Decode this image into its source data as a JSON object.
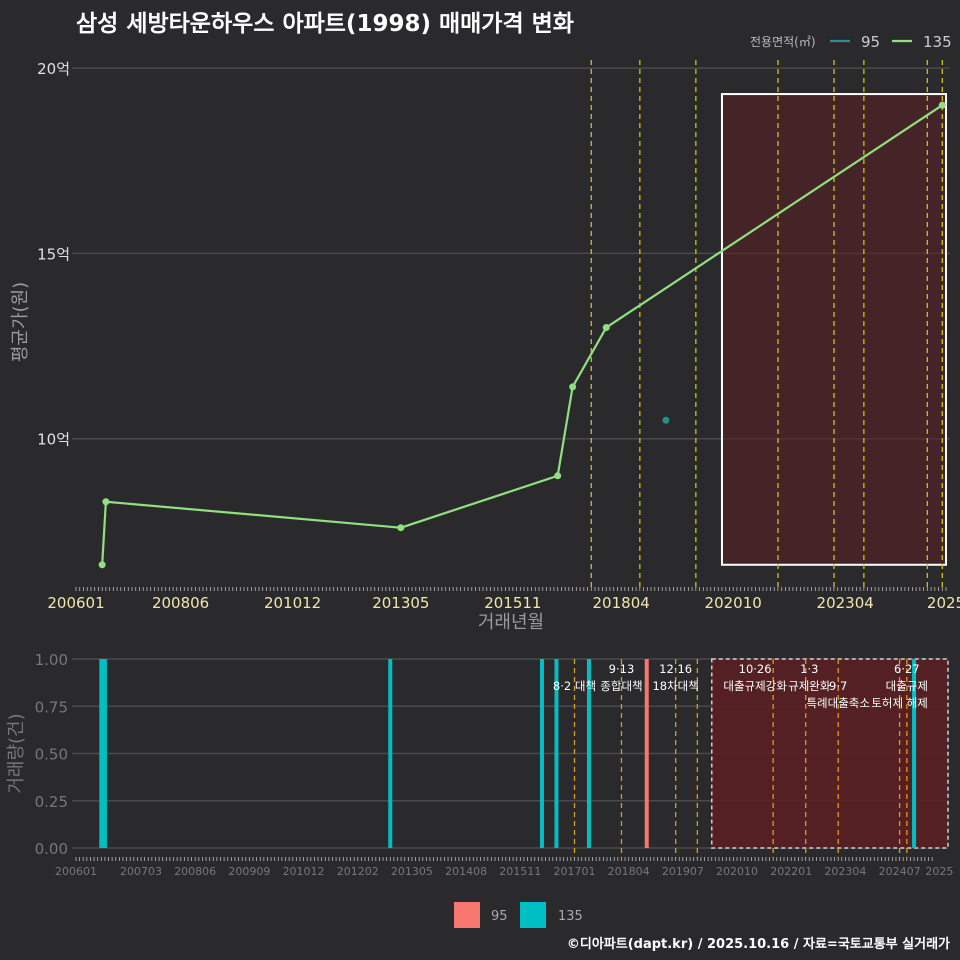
{
  "title": "삼성 세방타운하우스 아파트(1998) 매매가격 변화",
  "credit": "©디아파트(dapt.kr) / 2025.10.16 / 자료=국토교통부 실거래가",
  "colors": {
    "background": "#2a2a2c",
    "grid": "#4a4a4c",
    "line95": "#2a8c8c",
    "line135": "#90e080",
    "bar95": "#f8766d",
    "bar135": "#00bfc4",
    "policy_line": "#d4c010",
    "policy_line_bottom": "#e09a10",
    "highlight_fill": "#5a1f22",
    "highlight_border": "#ffffff"
  },
  "chart_data": [
    {
      "type": "line",
      "title": "삼성 세방타운하우스 아파트(1998) 매매가격 변화",
      "xlabel": "거래년월",
      "ylabel": "평균가(원)",
      "xlim": [
        2006.083,
        2025.5
      ],
      "ylim": [
        6.0,
        20.3
      ],
      "y_ticks": [
        {
          "v": 10,
          "label": "10억"
        },
        {
          "v": 15,
          "label": "15억"
        },
        {
          "v": 20,
          "label": "20억"
        }
      ],
      "x_ticks": [
        {
          "v": 2006.083,
          "label": "200601"
        },
        {
          "v": 2008.417,
          "label": "200806"
        },
        {
          "v": 2010.917,
          "label": "201012"
        },
        {
          "v": 2013.333,
          "label": "201305"
        },
        {
          "v": 2015.833,
          "label": "201511"
        },
        {
          "v": 2018.25,
          "label": "201804"
        },
        {
          "v": 2020.75,
          "label": "202010"
        },
        {
          "v": 2023.25,
          "label": "202304"
        },
        {
          "v": 2025.5,
          "label": "2025"
        }
      ],
      "legend_title": "전용면적(㎡)",
      "legend": [
        "95",
        "135"
      ],
      "series": [
        {
          "name": "95",
          "points": [
            {
              "x": 2019.25,
              "y": 10.5
            }
          ]
        },
        {
          "name": "135",
          "points": [
            {
              "x": 2006.667,
              "y": 6.6
            },
            {
              "x": 2006.75,
              "y": 8.3
            },
            {
              "x": 2013.333,
              "y": 7.6
            },
            {
              "x": 2016.833,
              "y": 9.0
            },
            {
              "x": 2017.167,
              "y": 11.4
            },
            {
              "x": 2017.917,
              "y": 13.0
            },
            {
              "x": 2025.417,
              "y": 19.0
            }
          ]
        }
      ],
      "policy_lines": [
        2017.583,
        2018.667,
        2019.917,
        2021.75,
        2023.0,
        2023.667,
        2025.083,
        2025.417
      ],
      "highlight_range": {
        "x": [
          2020.5,
          2025.5
        ],
        "y": [
          6.6,
          19.3
        ]
      }
    },
    {
      "type": "bar",
      "ylabel": "거래량(건)",
      "ylim": [
        0,
        1.0
      ],
      "y_ticks": [
        {
          "v": 0,
          "label": "0.00"
        },
        {
          "v": 0.25,
          "label": "0.25"
        },
        {
          "v": 0.5,
          "label": "0.50"
        },
        {
          "v": 0.75,
          "label": "0.75"
        },
        {
          "v": 1.0,
          "label": "1.00"
        }
      ],
      "x_ticks": [
        {
          "v": 2006.083,
          "label": "200601"
        },
        {
          "v": 2007.583,
          "label": "200703"
        },
        {
          "v": 2008.833,
          "label": "200806"
        },
        {
          "v": 2010.083,
          "label": "200909"
        },
        {
          "v": 2011.333,
          "label": "201012"
        },
        {
          "v": 2012.583,
          "label": "201202"
        },
        {
          "v": 2013.833,
          "label": "201305"
        },
        {
          "v": 2015.083,
          "label": "201408"
        },
        {
          "v": 2016.333,
          "label": "201511"
        },
        {
          "v": 2017.583,
          "label": "201701"
        },
        {
          "v": 2018.833,
          "label": "201804"
        },
        {
          "v": 2020.083,
          "label": "201907"
        },
        {
          "v": 2021.333,
          "label": "202010"
        },
        {
          "v": 2022.583,
          "label": "202201"
        },
        {
          "v": 2023.833,
          "label": "202304"
        },
        {
          "v": 2025.083,
          "label": "202407"
        },
        {
          "v": 2026.0,
          "label": "2025"
        }
      ],
      "legend": [
        "95",
        "135"
      ],
      "bars": [
        {
          "x": 2006.667,
          "series": "135",
          "value": 1
        },
        {
          "x": 2006.75,
          "series": "135",
          "value": 1
        },
        {
          "x": 2013.333,
          "series": "135",
          "value": 1
        },
        {
          "x": 2016.833,
          "series": "135",
          "value": 1
        },
        {
          "x": 2017.167,
          "series": "135",
          "value": 1
        },
        {
          "x": 2017.917,
          "series": "135",
          "value": 1
        },
        {
          "x": 2019.25,
          "series": "95",
          "value": 1
        },
        {
          "x": 2025.417,
          "series": "135",
          "value": 1
        }
      ],
      "policy_lines": [
        2017.583,
        2018.667,
        2019.917,
        2020.417,
        2022.167,
        2022.917,
        2023.667,
        2025.083,
        2025.25
      ],
      "highlight_range": {
        "x": [
          2020.75,
          2026.2
        ]
      },
      "annotations": [
        {
          "x": 2017.583,
          "row": 1,
          "text": "8·2 대책"
        },
        {
          "x": 2018.667,
          "row": 0,
          "text": "9·13"
        },
        {
          "x": 2018.667,
          "row": 1,
          "text": "종합대책"
        },
        {
          "x": 2019.917,
          "row": 0,
          "text": "12·16"
        },
        {
          "x": 2019.917,
          "row": 1,
          "text": "18차대책"
        },
        {
          "x": 2021.75,
          "row": 0,
          "text": "10·26"
        },
        {
          "x": 2021.75,
          "row": 1,
          "text": "대출규제강화"
        },
        {
          "x": 2023.0,
          "row": 0,
          "text": "1·3"
        },
        {
          "x": 2023.0,
          "row": 1,
          "text": "규제완화"
        },
        {
          "x": 2023.667,
          "row": 1,
          "text": "9·7"
        },
        {
          "x": 2023.667,
          "row": 2,
          "text": "특례대출축소"
        },
        {
          "x": 2025.083,
          "row": 2,
          "text": "토허제 해제"
        },
        {
          "x": 2025.25,
          "row": 0,
          "text": "6·27"
        },
        {
          "x": 2025.25,
          "row": 1,
          "text": "대출규제"
        }
      ]
    }
  ]
}
